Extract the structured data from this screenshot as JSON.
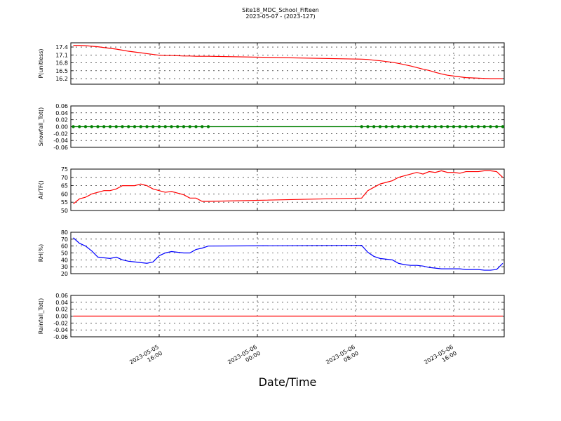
{
  "chart_data": [
    {
      "type": "line",
      "title": "Site18_MDC_School_Fifteen",
      "subtitle": "2023-05-07 - (2023-127)",
      "ylabel": "P(unitless)",
      "x": [
        "2023-05-05 09:00",
        "2023-05-05 09:30",
        "2023-05-05 10:00",
        "2023-05-05 10:30",
        "2023-05-05 11:00",
        "2023-05-05 11:30",
        "2023-05-05 12:00",
        "2023-05-05 12:30",
        "2023-05-05 13:00",
        "2023-05-05 13:30",
        "2023-05-05 14:00",
        "2023-05-05 14:30",
        "2023-05-05 15:00",
        "2023-05-05 15:30",
        "2023-05-05 16:00",
        "2023-05-05 16:30",
        "2023-05-05 17:00",
        "2023-05-05 17:30",
        "2023-05-05 18:00",
        "2023-05-05 18:30",
        "2023-05-05 19:00",
        "2023-05-05 19:30",
        "2023-05-05 20:00",
        "2023-05-06 08:30",
        "2023-05-06 09:00",
        "2023-05-06 09:30",
        "2023-05-06 10:00",
        "2023-05-06 10:30",
        "2023-05-06 11:00",
        "2023-05-06 11:30",
        "2023-05-06 12:00",
        "2023-05-06 12:30",
        "2023-05-06 13:00",
        "2023-05-06 13:30",
        "2023-05-06 14:00",
        "2023-05-06 14:30",
        "2023-05-06 15:00",
        "2023-05-06 15:30",
        "2023-05-06 16:00",
        "2023-05-06 16:30",
        "2023-05-06 17:00",
        "2023-05-06 17:30",
        "2023-05-06 18:00",
        "2023-05-06 18:30",
        "2023-05-06 19:00",
        "2023-05-06 19:30",
        "2023-05-06 20:00"
      ],
      "values": [
        17.46,
        17.46,
        17.45,
        17.43,
        17.41,
        17.38,
        17.35,
        17.32,
        17.28,
        17.24,
        17.21,
        17.18,
        17.15,
        17.12,
        17.09,
        17.08,
        17.08,
        17.07,
        17.06,
        17.06,
        17.05,
        17.05,
        17.05,
        16.94,
        16.93,
        16.9,
        16.88,
        16.85,
        16.82,
        16.78,
        16.73,
        16.68,
        16.62,
        16.56,
        16.51,
        16.44,
        16.38,
        16.33,
        16.3,
        16.27,
        16.24,
        16.23,
        16.22,
        16.21,
        16.2,
        16.2,
        16.2
      ],
      "color": "#ff0000",
      "marker": false,
      "xlim": [
        "2023-05-05 08:48",
        "2023-05-06 20:07"
      ],
      "xticks": [
        "2023-05-05 16:00",
        "2023-05-06 00:00",
        "2023-05-06 08:00",
        "2023-05-06 16:00"
      ],
      "ylim": [
        15.99,
        17.56
      ],
      "yticks": [
        16.2,
        16.5,
        16.8,
        17.1,
        17.4
      ],
      "grid": true
    },
    {
      "type": "line",
      "ylabel": "Snowfall_Tot()",
      "x": [
        "2023-05-05 09:00",
        "2023-05-05 09:30",
        "2023-05-05 10:00",
        "2023-05-05 10:30",
        "2023-05-05 11:00",
        "2023-05-05 11:30",
        "2023-05-05 12:00",
        "2023-05-05 12:30",
        "2023-05-05 13:00",
        "2023-05-05 13:30",
        "2023-05-05 14:00",
        "2023-05-05 14:30",
        "2023-05-05 15:00",
        "2023-05-05 15:30",
        "2023-05-05 16:00",
        "2023-05-05 16:30",
        "2023-05-05 17:00",
        "2023-05-05 17:30",
        "2023-05-05 18:00",
        "2023-05-05 18:30",
        "2023-05-05 19:00",
        "2023-05-05 19:30",
        "2023-05-05 20:00",
        "2023-05-06 08:30",
        "2023-05-06 09:00",
        "2023-05-06 09:30",
        "2023-05-06 10:00",
        "2023-05-06 10:30",
        "2023-05-06 11:00",
        "2023-05-06 11:30",
        "2023-05-06 12:00",
        "2023-05-06 12:30",
        "2023-05-06 13:00",
        "2023-05-06 13:30",
        "2023-05-06 14:00",
        "2023-05-06 14:30",
        "2023-05-06 15:00",
        "2023-05-06 15:30",
        "2023-05-06 16:00",
        "2023-05-06 16:30",
        "2023-05-06 17:00",
        "2023-05-06 17:30",
        "2023-05-06 18:00",
        "2023-05-06 18:30",
        "2023-05-06 19:00",
        "2023-05-06 19:30",
        "2023-05-06 20:00"
      ],
      "values": [
        0,
        0,
        0,
        0,
        0,
        0,
        0,
        0,
        0,
        0,
        0,
        0,
        0,
        0,
        0,
        0,
        0,
        0,
        0,
        0,
        0,
        0,
        0,
        0,
        0,
        0,
        0,
        0,
        0,
        0,
        0,
        0,
        0,
        0,
        0,
        0,
        0,
        0,
        0,
        0,
        0,
        0,
        0,
        0,
        0,
        0,
        0
      ],
      "color": "#008000",
      "marker": true,
      "xlim": [
        "2023-05-05 08:48",
        "2023-05-06 20:07"
      ],
      "xticks": [
        "2023-05-05 16:00",
        "2023-05-06 00:00",
        "2023-05-06 08:00",
        "2023-05-06 16:00"
      ],
      "ylim": [
        -0.06,
        0.06
      ],
      "yticks": [
        -0.06,
        -0.04,
        -0.02,
        {
          "value": 0,
          "label": "0.00"
        },
        0.02,
        0.04,
        0.06
      ],
      "grid": true
    },
    {
      "type": "line",
      "ylabel": "AirTF()",
      "x": [
        "2023-05-05 09:00",
        "2023-05-05 09:30",
        "2023-05-05 10:00",
        "2023-05-05 10:30",
        "2023-05-05 11:00",
        "2023-05-05 11:30",
        "2023-05-05 12:00",
        "2023-05-05 12:30",
        "2023-05-05 13:00",
        "2023-05-05 13:30",
        "2023-05-05 14:00",
        "2023-05-05 14:30",
        "2023-05-05 15:00",
        "2023-05-05 15:30",
        "2023-05-05 16:00",
        "2023-05-05 16:30",
        "2023-05-05 17:00",
        "2023-05-05 17:30",
        "2023-05-05 18:00",
        "2023-05-05 18:30",
        "2023-05-05 19:00",
        "2023-05-05 19:30",
        "2023-05-05 20:00",
        "2023-05-06 08:30",
        "2023-05-06 09:00",
        "2023-05-06 09:30",
        "2023-05-06 10:00",
        "2023-05-06 10:30",
        "2023-05-06 11:00",
        "2023-05-06 11:30",
        "2023-05-06 12:00",
        "2023-05-06 12:30",
        "2023-05-06 13:00",
        "2023-05-06 13:30",
        "2023-05-06 14:00",
        "2023-05-06 14:30",
        "2023-05-06 15:00",
        "2023-05-06 15:30",
        "2023-05-06 16:00",
        "2023-05-06 16:30",
        "2023-05-06 17:00",
        "2023-05-06 17:30",
        "2023-05-06 18:00",
        "2023-05-06 18:30",
        "2023-05-06 19:00",
        "2023-05-06 19:30",
        "2023-05-06 20:00"
      ],
      "values": [
        54,
        57,
        58,
        60,
        61,
        62,
        62,
        63,
        65,
        65,
        65,
        66,
        65,
        63,
        62,
        61,
        61.5,
        60.5,
        59.5,
        57.5,
        57.5,
        55.5,
        55.5,
        57.5,
        62,
        64,
        66,
        67,
        68,
        70,
        71,
        72,
        73,
        72,
        73.5,
        73,
        74,
        73,
        73,
        72.5,
        73.5,
        73.5,
        73.5,
        74,
        74,
        73.5,
        70
      ],
      "color": "#ff0000",
      "marker": false,
      "xlim": [
        "2023-05-05 08:48",
        "2023-05-06 20:07"
      ],
      "xticks": [
        "2023-05-05 16:00",
        "2023-05-06 00:00",
        "2023-05-06 08:00",
        "2023-05-06 16:00"
      ],
      "ylim": [
        50,
        75
      ],
      "yticks": [
        50,
        55,
        60,
        65,
        70,
        75
      ],
      "grid": true
    },
    {
      "type": "line",
      "ylabel": "RH(%)",
      "x": [
        "2023-05-05 09:00",
        "2023-05-05 09:30",
        "2023-05-05 10:00",
        "2023-05-05 10:30",
        "2023-05-05 11:00",
        "2023-05-05 11:30",
        "2023-05-05 12:00",
        "2023-05-05 12:30",
        "2023-05-05 13:00",
        "2023-05-05 13:30",
        "2023-05-05 14:00",
        "2023-05-05 14:30",
        "2023-05-05 15:00",
        "2023-05-05 15:30",
        "2023-05-05 16:00",
        "2023-05-05 16:30",
        "2023-05-05 17:00",
        "2023-05-05 17:30",
        "2023-05-05 18:00",
        "2023-05-05 18:30",
        "2023-05-05 19:00",
        "2023-05-05 19:30",
        "2023-05-05 20:00",
        "2023-05-06 08:30",
        "2023-05-06 09:00",
        "2023-05-06 09:30",
        "2023-05-06 10:00",
        "2023-05-06 10:30",
        "2023-05-06 11:00",
        "2023-05-06 11:30",
        "2023-05-06 12:00",
        "2023-05-06 12:30",
        "2023-05-06 13:00",
        "2023-05-06 13:30",
        "2023-05-06 14:00",
        "2023-05-06 14:30",
        "2023-05-06 15:00",
        "2023-05-06 15:30",
        "2023-05-06 16:00",
        "2023-05-06 16:30",
        "2023-05-06 17:00",
        "2023-05-06 17:30",
        "2023-05-06 18:00",
        "2023-05-06 18:30",
        "2023-05-06 19:00",
        "2023-05-06 19:30",
        "2023-05-06 20:00"
      ],
      "values": [
        72,
        64,
        60,
        53,
        44,
        43,
        42,
        44,
        40,
        38,
        37,
        36,
        35,
        37,
        46,
        50,
        52,
        51,
        50,
        50,
        55,
        57,
        60,
        61,
        51,
        45,
        42,
        41,
        40,
        35,
        33,
        32,
        32,
        31,
        29,
        28,
        27,
        27,
        27,
        27,
        26,
        26,
        26,
        25,
        25,
        26,
        35
      ],
      "color": "#0000ff",
      "marker": false,
      "xlim": [
        "2023-05-05 08:48",
        "2023-05-06 20:07"
      ],
      "xticks": [
        "2023-05-05 16:00",
        "2023-05-06 00:00",
        "2023-05-06 08:00",
        "2023-05-06 16:00"
      ],
      "ylim": [
        20,
        80
      ],
      "yticks": [
        20,
        30,
        40,
        50,
        60,
        70,
        80
      ],
      "grid": true
    },
    {
      "type": "line",
      "ylabel": "Rainfall_Tot()",
      "xlabel": "Date/Time",
      "x": [
        "2023-05-05 09:00",
        "2023-05-05 09:30",
        "2023-05-05 10:00",
        "2023-05-05 10:30",
        "2023-05-05 11:00",
        "2023-05-05 11:30",
        "2023-05-05 12:00",
        "2023-05-05 12:30",
        "2023-05-05 13:00",
        "2023-05-05 13:30",
        "2023-05-05 14:00",
        "2023-05-05 14:30",
        "2023-05-05 15:00",
        "2023-05-05 15:30",
        "2023-05-05 16:00",
        "2023-05-05 16:30",
        "2023-05-05 17:00",
        "2023-05-05 17:30",
        "2023-05-05 18:00",
        "2023-05-05 18:30",
        "2023-05-05 19:00",
        "2023-05-05 19:30",
        "2023-05-05 20:00",
        "2023-05-06 08:30",
        "2023-05-06 09:00",
        "2023-05-06 09:30",
        "2023-05-06 10:00",
        "2023-05-06 10:30",
        "2023-05-06 11:00",
        "2023-05-06 11:30",
        "2023-05-06 12:00",
        "2023-05-06 12:30",
        "2023-05-06 13:00",
        "2023-05-06 13:30",
        "2023-05-06 14:00",
        "2023-05-06 14:30",
        "2023-05-06 15:00",
        "2023-05-06 15:30",
        "2023-05-06 16:00",
        "2023-05-06 16:30",
        "2023-05-06 17:00",
        "2023-05-06 17:30",
        "2023-05-06 18:00",
        "2023-05-06 18:30",
        "2023-05-06 19:00",
        "2023-05-06 19:30",
        "2023-05-06 20:00"
      ],
      "values": [
        0,
        0,
        0,
        0,
        0,
        0,
        0,
        0,
        0,
        0,
        0,
        0,
        0,
        0,
        0,
        0,
        0,
        0,
        0,
        0,
        0,
        0,
        0,
        0,
        0,
        0,
        0,
        0,
        0,
        0,
        0,
        0,
        0,
        0,
        0,
        0,
        0,
        0,
        0,
        0,
        0,
        0,
        0,
        0,
        0,
        0,
        0
      ],
      "color": "#ff0000",
      "marker": false,
      "xlim": [
        "2023-05-05 08:48",
        "2023-05-06 20:07"
      ],
      "xticks": [
        "2023-05-05 16:00",
        "2023-05-06 00:00",
        "2023-05-06 08:00",
        "2023-05-06 16:00"
      ],
      "ylim": [
        -0.06,
        0.06
      ],
      "yticks": [
        -0.06,
        -0.04,
        -0.02,
        {
          "value": 0,
          "label": "0.00"
        },
        0.02,
        0.04,
        0.06
      ],
      "grid": true
    }
  ]
}
